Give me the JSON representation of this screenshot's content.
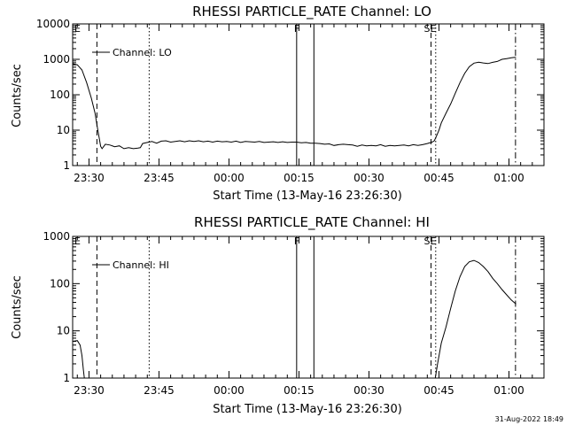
{
  "footer": {
    "timestamp": "31-Aug-2022 18:49"
  },
  "chart_data": [
    {
      "type": "line",
      "title": "RHESSI PARTICLE_RATE Channel: LO",
      "xlabel": "Start Time (13-May-16 23:26:30)",
      "ylabel": "Counts/sec",
      "yscale": "log",
      "ylim": [
        1,
        10000
      ],
      "xlim_minutes": [
        0,
        101
      ],
      "x_ticks": [
        {
          "minute": 3.5,
          "label": "23:30"
        },
        {
          "minute": 18.5,
          "label": "23:45"
        },
        {
          "minute": 33.5,
          "label": "00:00"
        },
        {
          "minute": 48.5,
          "label": "00:15"
        },
        {
          "minute": 63.5,
          "label": "00:30"
        },
        {
          "minute": 78.5,
          "label": "00:45"
        },
        {
          "minute": 93.5,
          "label": "01:00"
        }
      ],
      "y_ticks": [
        {
          "value": 1,
          "label": "1"
        },
        {
          "value": 10,
          "label": "10"
        },
        {
          "value": 100,
          "label": "100"
        },
        {
          "value": 1000,
          "label": "1000"
        },
        {
          "value": 10000,
          "label": "10000"
        }
      ],
      "series": [
        {
          "name": "Channel: LO",
          "points": [
            [
              0.0,
              750
            ],
            [
              1.0,
              700
            ],
            [
              2.0,
              500
            ],
            [
              3.0,
              220
            ],
            [
              4.0,
              80
            ],
            [
              4.8,
              30
            ],
            [
              5.3,
              12
            ],
            [
              5.7,
              6
            ],
            [
              6.0,
              3.5
            ],
            [
              6.3,
              3.0
            ],
            [
              7.0,
              4.0
            ],
            [
              8.0,
              3.8
            ],
            [
              9.0,
              3.4
            ],
            [
              10.0,
              3.6
            ],
            [
              11.0,
              3.0
            ],
            [
              12.0,
              3.2
            ],
            [
              13.0,
              3.0
            ],
            [
              14.0,
              3.1
            ],
            [
              14.5,
              3.2
            ],
            [
              15.0,
              4.2
            ],
            [
              16.0,
              4.5
            ],
            [
              17.0,
              4.8
            ],
            [
              18.0,
              4.3
            ],
            [
              19.0,
              4.9
            ],
            [
              20.0,
              5.0
            ],
            [
              21.0,
              4.6
            ],
            [
              22.0,
              4.8
            ],
            [
              23.0,
              5.0
            ],
            [
              24.0,
              4.7
            ],
            [
              25.0,
              5.0
            ],
            [
              26.0,
              4.8
            ],
            [
              27.0,
              5.0
            ],
            [
              28.0,
              4.7
            ],
            [
              29.0,
              4.9
            ],
            [
              30.0,
              4.6
            ],
            [
              31.0,
              4.9
            ],
            [
              32.0,
              4.7
            ],
            [
              33.0,
              4.8
            ],
            [
              34.0,
              4.6
            ],
            [
              35.0,
              4.9
            ],
            [
              36.0,
              4.5
            ],
            [
              37.0,
              4.8
            ],
            [
              38.0,
              4.7
            ],
            [
              39.0,
              4.6
            ],
            [
              40.0,
              4.8
            ],
            [
              41.0,
              4.5
            ],
            [
              42.0,
              4.6
            ],
            [
              43.0,
              4.7
            ],
            [
              44.0,
              4.5
            ],
            [
              45.0,
              4.7
            ],
            [
              46.0,
              4.5
            ],
            [
              47.0,
              4.6
            ],
            [
              48.0,
              4.6
            ],
            [
              49.0,
              4.4
            ],
            [
              50.0,
              4.5
            ],
            [
              51.0,
              4.3
            ],
            [
              52.0,
              4.3
            ],
            [
              53.0,
              4.2
            ],
            [
              54.0,
              4.0
            ],
            [
              55.0,
              4.1
            ],
            [
              56.0,
              3.7
            ],
            [
              57.0,
              3.9
            ],
            [
              58.0,
              4.0
            ],
            [
              59.0,
              3.9
            ],
            [
              60.0,
              3.8
            ],
            [
              61.0,
              3.5
            ],
            [
              62.0,
              3.8
            ],
            [
              63.0,
              3.6
            ],
            [
              64.0,
              3.7
            ],
            [
              65.0,
              3.6
            ],
            [
              66.0,
              3.9
            ],
            [
              67.0,
              3.5
            ],
            [
              68.0,
              3.7
            ],
            [
              69.0,
              3.6
            ],
            [
              70.0,
              3.7
            ],
            [
              71.0,
              3.8
            ],
            [
              72.0,
              3.6
            ],
            [
              73.0,
              3.9
            ],
            [
              74.0,
              3.7
            ],
            [
              75.0,
              3.9
            ],
            [
              76.0,
              4.2
            ],
            [
              77.0,
              4.6
            ],
            [
              77.5,
              5.0
            ],
            [
              78.0,
              7
            ],
            [
              78.5,
              10
            ],
            [
              79.0,
              16
            ],
            [
              80.0,
              30
            ],
            [
              81.0,
              55
            ],
            [
              82.0,
              110
            ],
            [
              83.0,
              220
            ],
            [
              84.0,
              400
            ],
            [
              85.0,
              620
            ],
            [
              86.0,
              780
            ],
            [
              87.0,
              830
            ],
            [
              88.0,
              790
            ],
            [
              89.0,
              760
            ],
            [
              90.0,
              820
            ],
            [
              91.0,
              870
            ],
            [
              92.0,
              1000
            ],
            [
              93.0,
              1050
            ],
            [
              94.0,
              1100
            ],
            [
              95.0,
              1150
            ]
          ]
        }
      ],
      "vertical_markers": [
        {
          "minute": 5.2,
          "style": "dashed",
          "label": "E"
        },
        {
          "minute": 16.4,
          "style": "dotted",
          "label": ""
        },
        {
          "minute": 48.0,
          "style": "solid",
          "label": "F"
        },
        {
          "minute": 51.7,
          "style": "solid",
          "label": ""
        },
        {
          "minute": 76.8,
          "style": "dashed",
          "label": "SE"
        },
        {
          "minute": 77.8,
          "style": "dotted",
          "label": ""
        },
        {
          "minute": 94.9,
          "style": "dashdot",
          "label": ""
        }
      ],
      "legend": {
        "label": "Channel: LO",
        "position": "top-left"
      }
    },
    {
      "type": "line",
      "title": "RHESSI PARTICLE_RATE Channel: HI",
      "xlabel": "Start Time (13-May-16 23:26:30)",
      "ylabel": "Counts/sec",
      "yscale": "log",
      "ylim": [
        1,
        1000
      ],
      "xlim_minutes": [
        0,
        101
      ],
      "x_ticks": [
        {
          "minute": 3.5,
          "label": "23:30"
        },
        {
          "minute": 18.5,
          "label": "23:45"
        },
        {
          "minute": 33.5,
          "label": "00:00"
        },
        {
          "minute": 48.5,
          "label": "00:15"
        },
        {
          "minute": 63.5,
          "label": "00:30"
        },
        {
          "minute": 78.5,
          "label": "00:45"
        },
        {
          "minute": 93.5,
          "label": "01:00"
        }
      ],
      "y_ticks": [
        {
          "value": 1,
          "label": "1"
        },
        {
          "value": 10,
          "label": "10"
        },
        {
          "value": 100,
          "label": "100"
        },
        {
          "value": 1000,
          "label": "1000"
        }
      ],
      "series": [
        {
          "name": "Channel: HI",
          "segments": [
            [
              [
                0.0,
                6.0
              ],
              [
                1.0,
                6.2
              ],
              [
                1.6,
                5.0
              ],
              [
                2.0,
                3.0
              ],
              [
                2.3,
                1.5
              ],
              [
                2.5,
                1.0
              ]
            ],
            [
              [
                77.7,
                1.0
              ],
              [
                78.2,
                2.0
              ],
              [
                79.0,
                5.5
              ],
              [
                80.0,
                12
              ],
              [
                81.0,
                30
              ],
              [
                82.0,
                70
              ],
              [
                83.0,
                140
              ],
              [
                84.0,
                230
              ],
              [
                85.0,
                290
              ],
              [
                86.0,
                310
              ],
              [
                87.0,
                280
              ],
              [
                88.0,
                230
              ],
              [
                89.0,
                180
              ],
              [
                90.0,
                130
              ],
              [
                91.0,
                100
              ],
              [
                92.0,
                75
              ],
              [
                93.0,
                58
              ],
              [
                94.0,
                45
              ],
              [
                95.0,
                37
              ]
            ]
          ]
        }
      ],
      "vertical_markers": [
        {
          "minute": 5.2,
          "style": "dashed",
          "label": "E"
        },
        {
          "minute": 16.4,
          "style": "dotted",
          "label": ""
        },
        {
          "minute": 48.0,
          "style": "solid",
          "label": "F"
        },
        {
          "minute": 51.7,
          "style": "solid",
          "label": ""
        },
        {
          "minute": 76.8,
          "style": "dashed",
          "label": "SE"
        },
        {
          "minute": 77.8,
          "style": "dotted",
          "label": ""
        },
        {
          "minute": 94.9,
          "style": "dashdot",
          "label": ""
        }
      ],
      "legend": {
        "label": "Channel: HI",
        "position": "top-left"
      }
    }
  ]
}
